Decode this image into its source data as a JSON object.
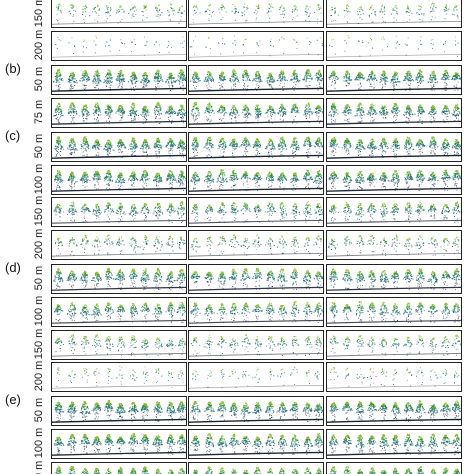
{
  "figure": {
    "groups": [
      {
        "label": "",
        "rows": [
          {
            "distance": "150 m",
            "density": 0.22,
            "clipped": true
          },
          {
            "distance": "200 m",
            "density": 0.06
          }
        ]
      },
      {
        "label": "(b)",
        "rows": [
          {
            "distance": "50 m",
            "density": 1.0
          },
          {
            "distance": "75 m",
            "density": 0.9
          }
        ]
      },
      {
        "label": "(c)",
        "rows": [
          {
            "distance": "50 m",
            "density": 1.0
          },
          {
            "distance": "100 m",
            "density": 0.95
          },
          {
            "distance": "150 m",
            "density": 0.6
          },
          {
            "distance": "200 m",
            "density": 0.3
          }
        ]
      },
      {
        "label": "(d)",
        "rows": [
          {
            "distance": "50 m",
            "density": 0.85
          },
          {
            "distance": "100 m",
            "density": 0.7
          },
          {
            "distance": "150 m",
            "density": 0.35
          },
          {
            "distance": "200 m",
            "density": 0.12
          }
        ]
      },
      {
        "label": "(e)",
        "rows": [
          {
            "distance": "50 m",
            "density": 1.0
          },
          {
            "distance": "100 m",
            "density": 0.95
          },
          {
            "distance": "150 m",
            "density": 0.85,
            "clipped": true
          }
        ]
      }
    ],
    "columns": 3,
    "colors": {
      "canopy_top": "#8ab82e",
      "canopy_mid": "#2e8a3e",
      "canopy_low": "#1f6b72",
      "stem": "#23374f",
      "ground": "#1b2230"
    }
  }
}
